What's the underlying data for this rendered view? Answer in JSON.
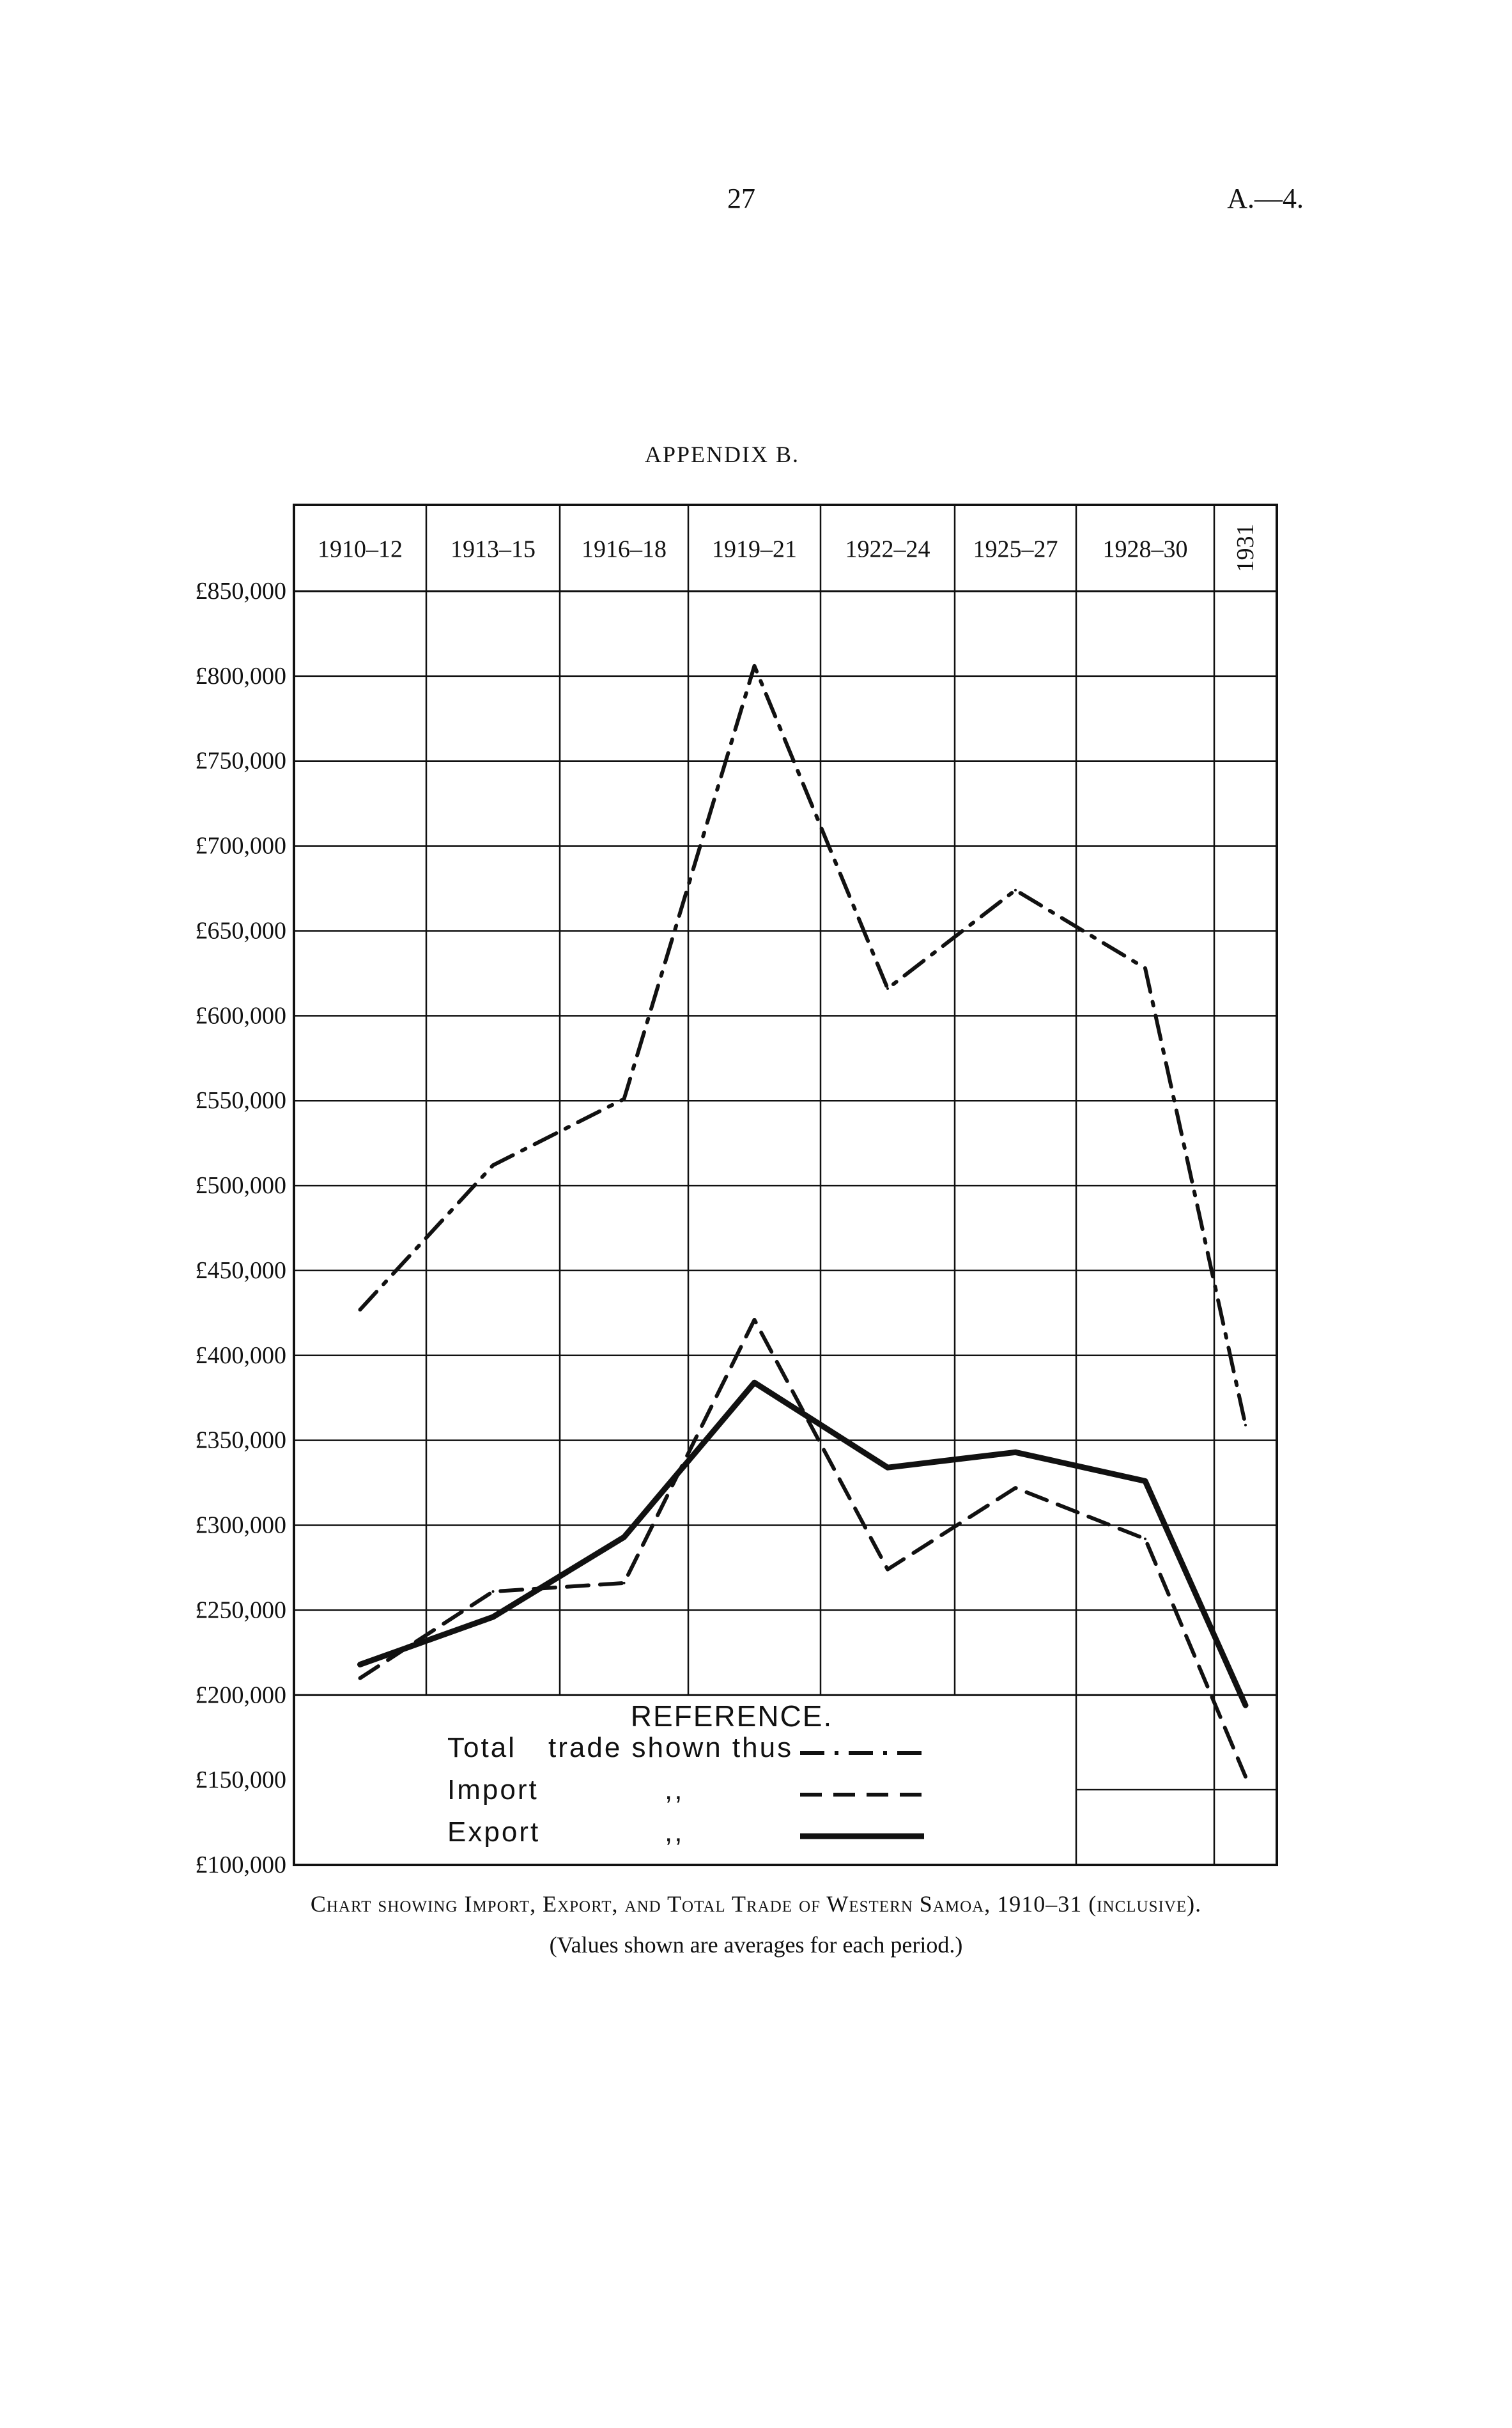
{
  "header": {
    "page_number": "27",
    "doc_ref": "A.—4."
  },
  "appendix_title": "APPENDIX B.",
  "caption": {
    "pre": "Chart showing Import, Export, and Total Trade of Western Samoa, 1910–31 (inclusive).",
    "note": "(Values shown are averages for each period.)"
  },
  "reference": {
    "title": "REFERENCE.",
    "rows": [
      {
        "label": "Total",
        "suffix": "trade shown thus",
        "style": "dash-dot"
      },
      {
        "label": "Import",
        "suffix": ",,",
        "style": "dashed"
      },
      {
        "label": "Export",
        "suffix": ",,",
        "style": "solid"
      }
    ]
  },
  "chart_data": {
    "type": "line",
    "categories": [
      "1910–12",
      "1913–15",
      "1916–18",
      "1919–21",
      "1922–24",
      "1925–27",
      "1928–30",
      "1931"
    ],
    "y_ticks": [
      "£850,000",
      "£800,000",
      "£750,000",
      "£700,000",
      "£650,000",
      "£600,000",
      "£550,000",
      "£500,000",
      "£450,000",
      "£400,000",
      "£350,000",
      "£300,000",
      "£250,000",
      "£200,000",
      "£150,000",
      "£100,000"
    ],
    "ylim": [
      100000,
      850000
    ],
    "grid": true,
    "legend": "bottom-center",
    "series": [
      {
        "name": "Total",
        "style": "dash-dot",
        "x": [
          0.5,
          1.5,
          2.5,
          3.5,
          4.5,
          5.5,
          6.5,
          7.5
        ],
        "values": [
          427000,
          512000,
          551000,
          806000,
          616000,
          674000,
          628000,
          359000
        ]
      },
      {
        "name": "Import",
        "style": "dashed",
        "x": [
          0.5,
          1.5,
          2.5,
          3.5,
          4.5,
          5.5,
          6.5,
          7.5
        ],
        "values": [
          210000,
          261000,
          266000,
          421000,
          274000,
          322000,
          292000,
          152000
        ]
      },
      {
        "name": "Export",
        "style": "solid",
        "x": [
          0.5,
          1.5,
          2.5,
          3.5,
          4.5,
          5.5,
          6.5,
          7.5
        ],
        "values": [
          218000,
          246000,
          293000,
          384000,
          334000,
          343000,
          326000,
          194000
        ]
      }
    ]
  }
}
